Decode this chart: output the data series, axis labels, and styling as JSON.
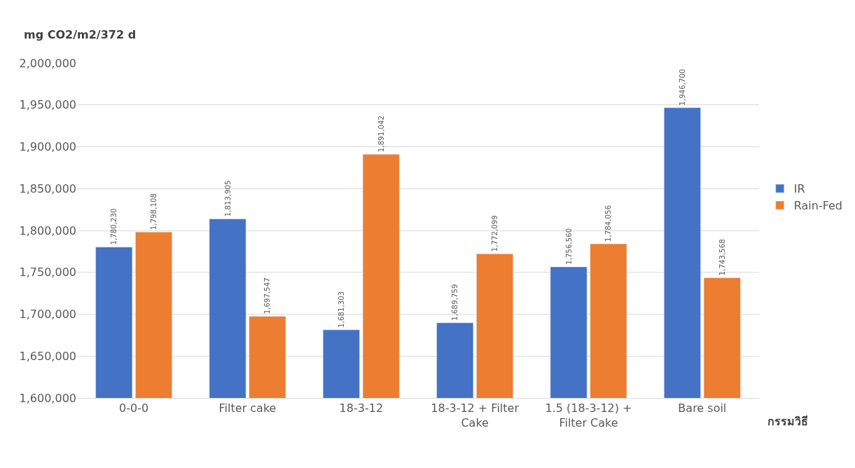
{
  "chart_data": {
    "type": "bar",
    "ylabel": "mg CO2/m2/372 d",
    "xlabel": "กรรมวิธี",
    "categories": [
      "0-0-0",
      "Filter cake",
      "18-3-12",
      "18-3-12 + Filter Cake",
      "1.5 (18-3-12) + Filter Cake",
      "Bare soil"
    ],
    "series": [
      {
        "name": "IR",
        "color": "#4472c4",
        "values": [
          1780230,
          1813905,
          1681303,
          1689759,
          1756560,
          1946700
        ],
        "value_labels": [
          "1,780,230",
          "1,813,905",
          "1,681,303",
          "1,689,759",
          "1,756,560",
          "1,946,700"
        ]
      },
      {
        "name": "Rain-Fed",
        "color": "#ed7d31",
        "values": [
          1798108,
          1697547,
          1891042,
          1772099,
          1784056,
          1743568
        ],
        "value_labels": [
          "1,798,108",
          "1,697,547",
          "1,891,042",
          "1,772,099",
          "1,784,056",
          "1,743,568"
        ]
      }
    ],
    "ylim": [
      1600000,
      2000000
    ],
    "yticks": [
      {
        "value": 1600000,
        "label": "1,600,000"
      },
      {
        "value": 1650000,
        "label": "1,650,000"
      },
      {
        "value": 1700000,
        "label": "1,700,000"
      },
      {
        "value": 1750000,
        "label": "1,750,000"
      },
      {
        "value": 1800000,
        "label": "1,800,000"
      },
      {
        "value": 1850000,
        "label": "1,850,000"
      },
      {
        "value": 1900000,
        "label": "1,900,000"
      },
      {
        "value": 1950000,
        "label": "1,950,000"
      },
      {
        "value": 2000000,
        "label": "2,000,000"
      }
    ],
    "grid": "y",
    "legend": "right"
  }
}
